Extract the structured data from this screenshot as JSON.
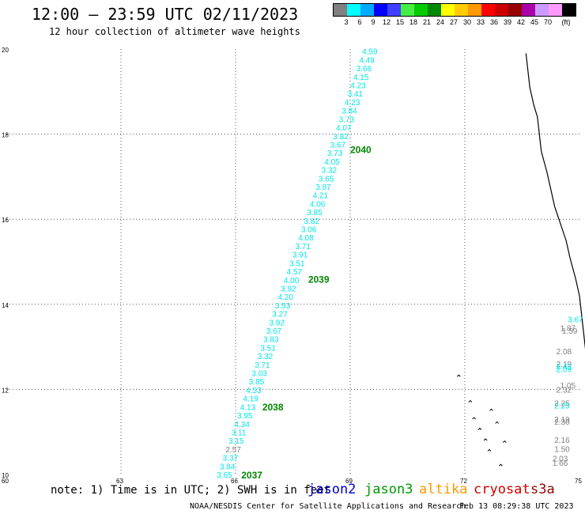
{
  "header": {
    "title": "12:00 — 23:59 UTC 02/11/2023",
    "subtitle": "12 hour collection of altimeter wave heights"
  },
  "legend": {
    "colors": [
      "#808080",
      "#00ffff",
      "#00aaff",
      "#0000ff",
      "#4040ff",
      "#44ee44",
      "#00cc00",
      "#008800",
      "#ffff00",
      "#ffcc00",
      "#ff9900",
      "#ff0000",
      "#cc0000",
      "#990000",
      "#aa00aa",
      "#cc99ff",
      "#ff99ff",
      "#000000"
    ],
    "labels": [
      "3",
      "6",
      "9",
      "12",
      "15",
      "18",
      "21",
      "24",
      "27",
      "30",
      "33",
      "36",
      "39",
      "42",
      "45",
      "70",
      "(ft)"
    ]
  },
  "axes": {
    "x_ticks": [
      "60",
      "63",
      "66",
      "69",
      "72",
      "75"
    ],
    "y_ticks": [
      "10",
      "12",
      "14",
      "16",
      "18",
      "20"
    ],
    "xlim": [
      60,
      75
    ],
    "ylim": [
      10,
      20
    ]
  },
  "chart_data": {
    "type": "scatter",
    "xlim": [
      60,
      75
    ],
    "ylim": [
      10,
      20
    ],
    "grid": true,
    "track": {
      "color": "#00e5e5",
      "start": [
        65.8,
        10.0
      ],
      "end": [
        69.6,
        19.95
      ],
      "values": [
        "3.65",
        "3.84",
        "3.37",
        "2.57",
        "3.15",
        "3.11",
        "4.34",
        "3.95",
        "4.13",
        "4.19",
        "4.53",
        "3.85",
        "3.03",
        "3.71",
        "3.32",
        "3.51",
        "3.83",
        "3.67",
        "3.92",
        "3.27",
        "3.53",
        "4.20",
        "3.92",
        "4.00",
        "4.57",
        "3.51",
        "3.91",
        "3.71",
        "4.08",
        "3.06",
        "3.82",
        "3.85",
        "4.06",
        "4.21",
        "3.87",
        "3.65",
        "3.32",
        "4.05",
        "3.73",
        "3.67",
        "3.82",
        "4.07",
        "3.73",
        "3.84",
        "4.23",
        "3.41",
        "4.23",
        "4.15",
        "3.66",
        "4.49",
        "4.59"
      ],
      "gray_values": [
        "2.57"
      ]
    },
    "pass_labels": [
      {
        "text": "2037",
        "x": 66.15,
        "y": 10.0
      },
      {
        "text": "2038",
        "x": 66.7,
        "y": 11.6
      },
      {
        "text": "2039",
        "x": 67.9,
        "y": 14.6
      },
      {
        "text": "2040",
        "x": 69.0,
        "y": 17.65
      }
    ],
    "right_values": [
      {
        "text": "3.67",
        "x": 74.9,
        "y": 13.65,
        "color": "#00e5e5"
      },
      {
        "text": "1.87",
        "x": 74.7,
        "y": 13.45,
        "color": "#808080"
      },
      {
        "text": "1.59",
        "x": 74.75,
        "y": 13.38,
        "color": "#808080"
      },
      {
        "text": "2.08",
        "x": 74.6,
        "y": 12.9,
        "color": "#808080"
      },
      {
        "text": "2.19",
        "x": 74.6,
        "y": 12.6,
        "color": "#808080"
      },
      {
        "text": "2.43",
        "x": 74.6,
        "y": 12.55,
        "color": "#00e5e5"
      },
      {
        "text": "2.09",
        "x": 74.6,
        "y": 12.48,
        "color": "#00e5e5"
      },
      {
        "text": "1.05",
        "x": 74.7,
        "y": 12.1,
        "color": "#808080"
      },
      {
        "text": "2.32",
        "x": 74.6,
        "y": 12.0,
        "color": "#808080"
      },
      {
        "text": "2.25",
        "x": 74.55,
        "y": 11.68,
        "color": "#808080"
      },
      {
        "text": "2.25",
        "x": 74.55,
        "y": 11.63,
        "color": "#00e5e5"
      },
      {
        "text": "2.19",
        "x": 74.55,
        "y": 11.3,
        "color": "#808080"
      },
      {
        "text": "2.30",
        "x": 74.55,
        "y": 11.25,
        "color": "#808080"
      },
      {
        "text": "2.16",
        "x": 74.55,
        "y": 10.82,
        "color": "#808080"
      },
      {
        "text": "1.50",
        "x": 74.55,
        "y": 10.6,
        "color": "#808080"
      },
      {
        "text": "2.03",
        "x": 74.5,
        "y": 10.38,
        "color": "#808080"
      },
      {
        "text": "1.66",
        "x": 74.5,
        "y": 10.28,
        "color": "#808080"
      }
    ]
  },
  "footer": {
    "note": "note: 1) Time is in UTC; 2) SWH is in feet",
    "missions": [
      {
        "name": "jason2",
        "color": "#0000cc"
      },
      {
        "name": "jason3",
        "color": "#009900"
      },
      {
        "name": "altika",
        "color": "#ff9900"
      },
      {
        "name": "cryosat",
        "color": "#cc0000"
      },
      {
        "name": "s3a",
        "color": "#990000"
      }
    ],
    "credit": "NOAA/NESDIS Center for Satellite Applications and Research",
    "timestamp": "Feb 13 08:29:38 UTC 2023"
  }
}
